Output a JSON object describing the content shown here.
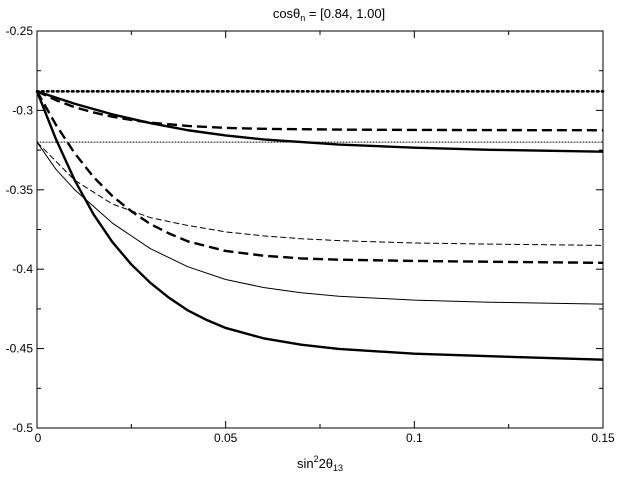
{
  "chart_data": {
    "type": "line",
    "title": "cosθ",
    "title_sub": "n",
    "title_suffix": " = [0.84, 1.00]",
    "xlabel": {
      "base": "sin",
      "sup": "2",
      "mid": "2θ",
      "sub": "13"
    },
    "ylabel": "",
    "xlim": [
      0,
      0.15
    ],
    "ylim": [
      -0.5,
      -0.25
    ],
    "x_ticks": [
      {
        "value": 0,
        "label": "0"
      },
      {
        "value": 0.05,
        "label": "0.05"
      },
      {
        "value": 0.1,
        "label": "0.1"
      },
      {
        "value": 0.15,
        "label": "0.15"
      }
    ],
    "y_ticks": [
      {
        "value": -0.25,
        "label": "-0.25"
      },
      {
        "value": -0.3,
        "label": "-0.3"
      },
      {
        "value": -0.35,
        "label": "-0.35"
      },
      {
        "value": -0.4,
        "label": "-0.4"
      },
      {
        "value": -0.45,
        "label": "-0.45"
      },
      {
        "value": -0.5,
        "label": "-0.5"
      }
    ],
    "grid": false,
    "series": [
      {
        "style": "dotted-thick",
        "color": "#000000",
        "x": [
          0,
          0.15
        ],
        "y": [
          -0.288,
          -0.288
        ]
      },
      {
        "style": "dotted-thin",
        "color": "#000000",
        "x": [
          0,
          0.15
        ],
        "y": [
          -0.32,
          -0.32
        ]
      },
      {
        "style": "dashed-thick",
        "color": "#000000",
        "x": [
          0,
          0.005,
          0.01,
          0.015,
          0.02,
          0.025,
          0.03,
          0.04,
          0.05,
          0.06,
          0.08,
          0.1,
          0.12,
          0.15
        ],
        "y": [
          -0.288,
          -0.2935,
          -0.298,
          -0.3013,
          -0.304,
          -0.306,
          -0.3077,
          -0.3098,
          -0.311,
          -0.3116,
          -0.3121,
          -0.3123,
          -0.3124,
          -0.3125
        ]
      },
      {
        "style": "solid-thick",
        "color": "#000000",
        "x": [
          0,
          0.01,
          0.02,
          0.03,
          0.04,
          0.05,
          0.06,
          0.08,
          0.1,
          0.12,
          0.15
        ],
        "y": [
          -0.288,
          -0.2958,
          -0.3025,
          -0.308,
          -0.3125,
          -0.3158,
          -0.3183,
          -0.3215,
          -0.3235,
          -0.3248,
          -0.326
        ]
      },
      {
        "style": "dashed-thick",
        "color": "#000000",
        "x": [
          0,
          0.005,
          0.01,
          0.015,
          0.02,
          0.025,
          0.03,
          0.035,
          0.04,
          0.05,
          0.06,
          0.07,
          0.08,
          0.1,
          0.12,
          0.15
        ],
        "y": [
          -0.288,
          -0.309,
          -0.327,
          -0.342,
          -0.354,
          -0.3635,
          -0.3715,
          -0.3775,
          -0.3825,
          -0.3885,
          -0.3915,
          -0.3932,
          -0.394,
          -0.3948,
          -0.3953,
          -0.396
        ]
      },
      {
        "style": "solid-thick",
        "color": "#000000",
        "x": [
          0,
          0.005,
          0.01,
          0.015,
          0.02,
          0.025,
          0.03,
          0.035,
          0.04,
          0.045,
          0.05,
          0.06,
          0.07,
          0.08,
          0.1,
          0.12,
          0.15
        ],
        "y": [
          -0.288,
          -0.318,
          -0.344,
          -0.3655,
          -0.383,
          -0.397,
          -0.4085,
          -0.418,
          -0.426,
          -0.432,
          -0.437,
          -0.4435,
          -0.4475,
          -0.4502,
          -0.4532,
          -0.4548,
          -0.457
        ]
      },
      {
        "style": "dashed-thin",
        "color": "#000000",
        "x": [
          0,
          0.01,
          0.02,
          0.03,
          0.04,
          0.05,
          0.06,
          0.07,
          0.08,
          0.1,
          0.12,
          0.15
        ],
        "y": [
          -0.32,
          -0.344,
          -0.359,
          -0.3675,
          -0.3725,
          -0.3765,
          -0.379,
          -0.3808,
          -0.382,
          -0.3835,
          -0.3842,
          -0.385
        ]
      },
      {
        "style": "solid-thin",
        "color": "#000000",
        "x": [
          0,
          0.005,
          0.01,
          0.02,
          0.03,
          0.04,
          0.05,
          0.06,
          0.07,
          0.08,
          0.1,
          0.12,
          0.15
        ],
        "y": [
          -0.32,
          -0.337,
          -0.35,
          -0.371,
          -0.387,
          -0.3985,
          -0.4065,
          -0.4115,
          -0.4148,
          -0.417,
          -0.4195,
          -0.4208,
          -0.422
        ]
      }
    ]
  }
}
